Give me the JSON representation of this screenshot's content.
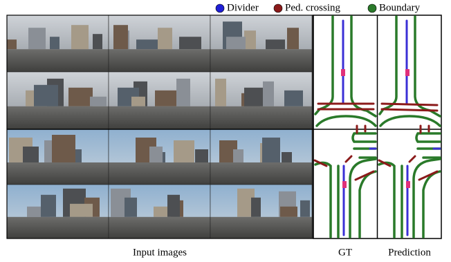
{
  "legend": [
    {
      "label": "Divider",
      "color": "#1f1fd6"
    },
    {
      "label": "Ped. crossing",
      "color": "#8b1a1a"
    },
    {
      "label": "Boundary",
      "color": "#2a7a2a"
    }
  ],
  "captions": {
    "input": "Input images",
    "gt": "GT",
    "prediction": "Prediction"
  }
}
